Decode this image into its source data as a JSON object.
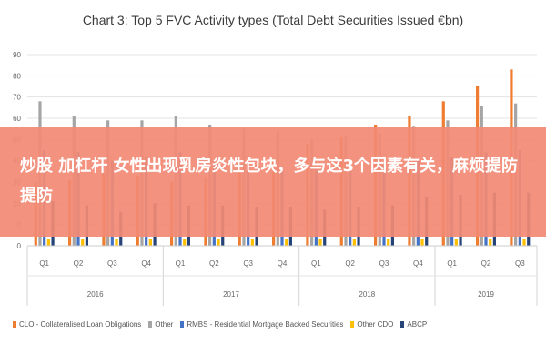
{
  "banner": {
    "text": "炒股 加杠杆 女性出现乳房炎性包块，多与这3个因素有关，麻烦提防提防"
  },
  "chart_data": {
    "type": "bar",
    "title": "Chart 3: Top 5 FVC Activity types (Total Debt Securities Issued €bn)",
    "xlabel": "",
    "ylabel": "",
    "ylim": [
      0,
      90
    ],
    "yticks": [
      0,
      10,
      20,
      30,
      40,
      50,
      60,
      70,
      80,
      90
    ],
    "grid": true,
    "legend_position": "bottom",
    "categories": [
      "Q1",
      "Q2",
      "Q3",
      "Q4",
      "Q1",
      "Q2",
      "Q3",
      "Q4",
      "Q1",
      "Q2",
      "Q3",
      "Q4",
      "Q1",
      "Q2",
      "Q3"
    ],
    "year_groups": [
      {
        "label": "2016",
        "span": 4
      },
      {
        "label": "2017",
        "span": 4
      },
      {
        "label": "2018",
        "span": 4
      },
      {
        "label": "2019",
        "span": 3
      }
    ],
    "series": [
      {
        "name": "CLO - Collateralised Loan Obligations",
        "color": "#ee7d31",
        "values": [
          30,
          31,
          34,
          33,
          30,
          32,
          35,
          40,
          48,
          51,
          57,
          61,
          68,
          75,
          83
        ]
      },
      {
        "name": "Other",
        "color": "#a5a5a5",
        "values": [
          68,
          61,
          59,
          59,
          61,
          57,
          55,
          54,
          50,
          52,
          53,
          56,
          59,
          66,
          67
        ]
      },
      {
        "name": "RMBS - Residential Mortgage Backed Securities",
        "color": "#4472c4",
        "values": [
          45,
          44,
          40,
          42,
          44,
          40,
          38,
          35,
          36,
          36,
          39,
          40,
          42,
          44,
          45
        ]
      },
      {
        "name": "Other CDO",
        "color": "#ffc000",
        "values": [
          3,
          3,
          3,
          3,
          3,
          3,
          3,
          3,
          3,
          3,
          3,
          3,
          3,
          3,
          3
        ]
      },
      {
        "name": "ABCP",
        "color": "#264478",
        "values": [
          21,
          19,
          16,
          20,
          19,
          19,
          18,
          18,
          17,
          18,
          19,
          23,
          24,
          25,
          25
        ]
      }
    ]
  }
}
